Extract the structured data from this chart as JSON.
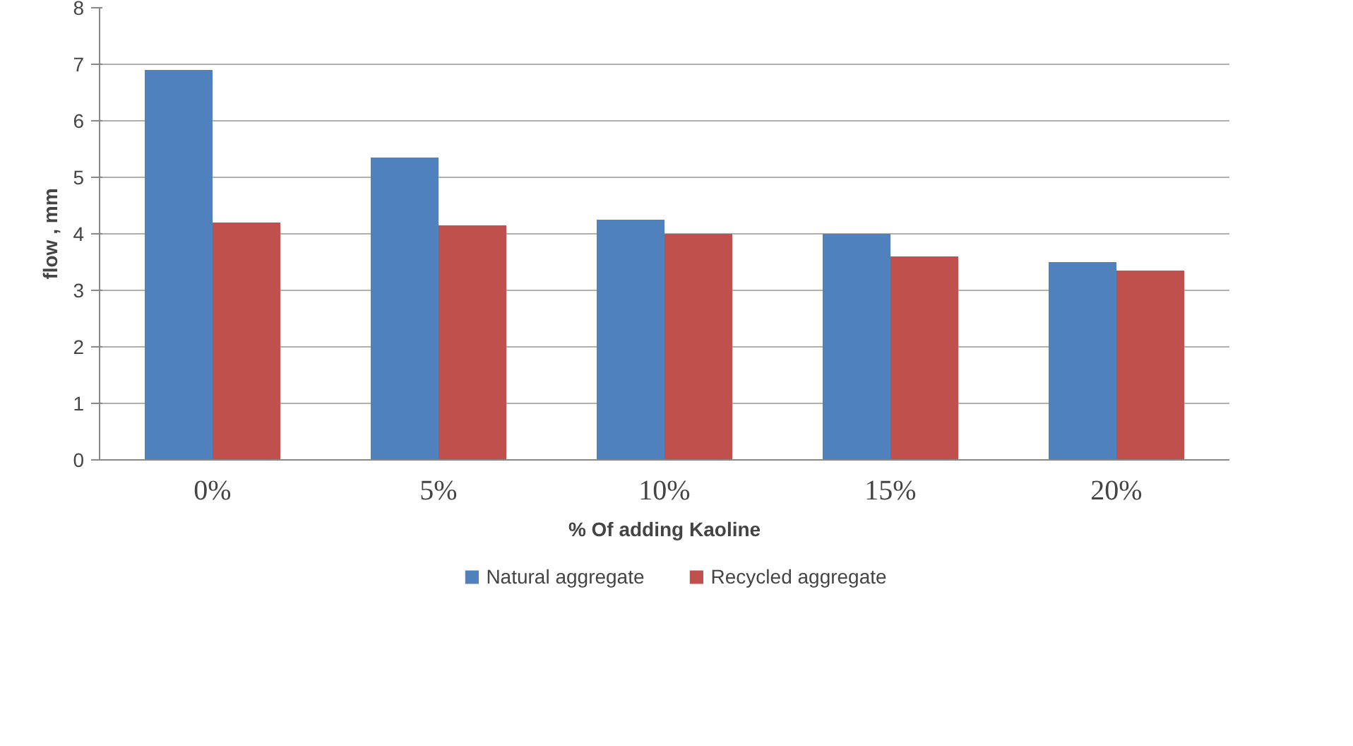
{
  "chart_data": {
    "type": "bar",
    "xlabel": "% Of adding Kaoline",
    "ylabel": "flow , mm",
    "categories": [
      "0%",
      "5%",
      "10%",
      "15%",
      "20%"
    ],
    "series": [
      {
        "name": "Natural aggregate",
        "color": "#4f81bd",
        "values": [
          6.9,
          5.35,
          4.25,
          4.0,
          3.5
        ]
      },
      {
        "name": "Recycled aggregate",
        "color": "#c0504d",
        "values": [
          4.2,
          4.15,
          4.0,
          3.6,
          3.35
        ]
      }
    ],
    "ylim": [
      0,
      8
    ],
    "yticks": [
      0,
      1,
      2,
      3,
      4,
      5,
      6,
      7,
      8
    ],
    "grid": "y",
    "legend": "bottom"
  }
}
